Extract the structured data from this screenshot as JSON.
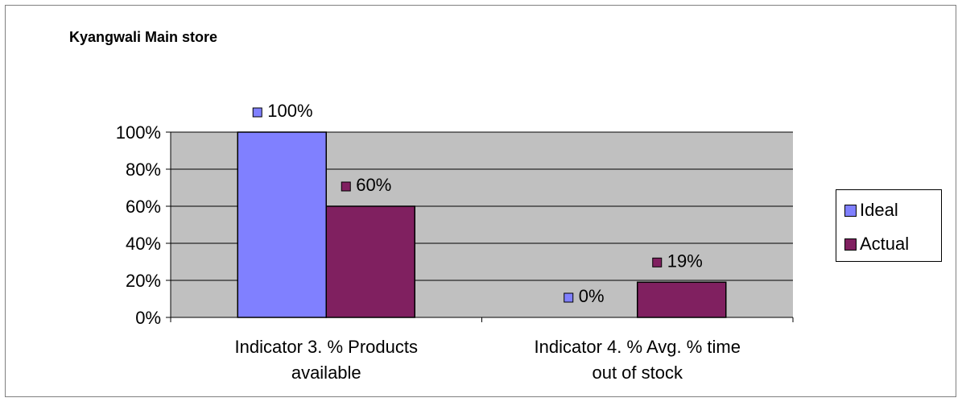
{
  "chart_data": {
    "type": "bar",
    "title": "Kyangwali Main store",
    "categories": [
      "Indicator 3. % Products available",
      "Indicator 4. % Avg. % time out of stock"
    ],
    "category_lines": [
      [
        "Indicator 3. % Products",
        "available"
      ],
      [
        "Indicator 4. % Avg. % time",
        "out of stock"
      ]
    ],
    "series": [
      {
        "name": "Ideal",
        "values": [
          100,
          0
        ],
        "labels": [
          "100%",
          "0%"
        ],
        "color": "#8080ff"
      },
      {
        "name": "Actual",
        "values": [
          60,
          19
        ],
        "labels": [
          "60%",
          "19%"
        ],
        "color": "#802060"
      }
    ],
    "yticks": [
      "0%",
      "20%",
      "40%",
      "60%",
      "80%",
      "100%"
    ],
    "ylim": [
      0,
      100
    ],
    "plot_background": "#c0c0c0",
    "grid": true,
    "legend_position": "right"
  }
}
